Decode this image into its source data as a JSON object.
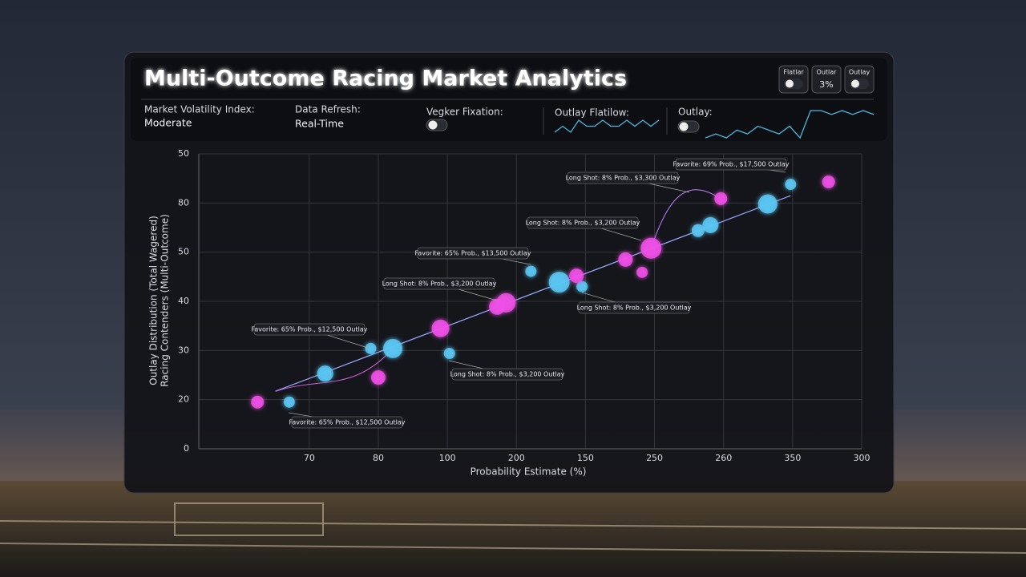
{
  "header": {
    "title": "Multi-Outcome Racing Market Analytics",
    "stats": [
      {
        "label": "Market Volatility Index:",
        "value": "Moderate"
      },
      {
        "label": "Data Refresh:",
        "value": "Real-Time"
      },
      {
        "label": "Vegker Fixation:"
      },
      {
        "label": "Outlay Flatilow:"
      },
      {
        "label": "Outlay:"
      }
    ],
    "controls": [
      {
        "label": "Flatlar"
      },
      {
        "label": "Outlar",
        "value": "3%"
      },
      {
        "label": "Outlay"
      }
    ]
  },
  "sparklines": [
    [
      3,
      4,
      3,
      5,
      4,
      4,
      5,
      4,
      4,
      5,
      4,
      5,
      4,
      5
    ],
    [
      6,
      7,
      6,
      8,
      7,
      9,
      8,
      7,
      9,
      6,
      13,
      13,
      12,
      13,
      12,
      13,
      12
    ]
  ],
  "chart_data": {
    "type": "scatter",
    "xlabel": "Probability Estimate (%)",
    "ylabel": [
      "Outlay Distribution (Total Wagered)",
      "Racing Contenders (Multi-Outcome)"
    ],
    "xlim": [
      -0.6,
      9
    ],
    "xticks": [
      {
        "value": 1,
        "label": "70"
      },
      {
        "value": 2,
        "label": "80"
      },
      {
        "value": 3,
        "label": "100"
      },
      {
        "value": 4,
        "label": "200"
      },
      {
        "value": 5,
        "label": "150"
      },
      {
        "value": 6,
        "label": "250"
      },
      {
        "value": 7,
        "label": "260"
      },
      {
        "value": 8,
        "label": "350"
      },
      {
        "value": 9,
        "label": "300"
      }
    ],
    "ylim": [
      0,
      6
    ],
    "yticks": [
      {
        "value": 0,
        "label": "0"
      },
      {
        "value": 1,
        "label": "20"
      },
      {
        "value": 2,
        "label": "30"
      },
      {
        "value": 3,
        "label": "40"
      },
      {
        "value": 4,
        "label": "50"
      },
      {
        "value": 5,
        "label": "80"
      },
      {
        "value": 6,
        "label": "50"
      }
    ],
    "grid": true,
    "series": [
      {
        "color": "#5cc8f5",
        "x": [
          0.71,
          1.23,
          1.89,
          2.21,
          3.03,
          4.21,
          4.62,
          4.95,
          6.63,
          6.81,
          7.64,
          7.97
        ],
        "values": [
          0.95,
          1.53,
          2.04,
          2.04,
          1.94,
          3.61,
          3.39,
          3.3,
          4.44,
          4.55,
          4.98,
          5.38
        ],
        "sizes": [
          7,
          10,
          7,
          12,
          7,
          7,
          13,
          7,
          8,
          10,
          12,
          7
        ]
      },
      {
        "color": "#f050e8",
        "x": [
          0.25,
          2.0,
          2.9,
          3.72,
          3.85,
          4.87,
          5.58,
          5.82,
          5.95,
          6.96,
          8.52
        ],
        "values": [
          0.95,
          1.45,
          2.45,
          2.89,
          2.97,
          3.52,
          3.85,
          3.59,
          4.08,
          5.09,
          5.43
        ],
        "sizes": [
          8,
          9,
          11,
          10,
          12,
          9,
          9,
          7,
          13,
          8,
          8
        ]
      }
    ],
    "trend_line": {
      "x": [
        0.51,
        7.97
      ],
      "values": [
        1.17,
        5.15
      ]
    },
    "annotations": [
      "Favorite: 65% Prob., $12,500 Outlay",
      "Favorite: 65% Prob., $12,500 Outlay",
      "Long Shot: 8% Prob., $3,200 Outlay",
      "Favorite: 65% Prob., $13,500 Outlay",
      "Long Shot: 8% Prob., $3,200 Outlay",
      "Long Shot: 8% Prob., $3,200 Outlay",
      "Long Shot: 8% Prob., $3,200 Outlay",
      "Long Shot: 8% Prob., $3,300 Outlay",
      "Favorite: 69% Prob., $17,500 Outlay"
    ]
  }
}
